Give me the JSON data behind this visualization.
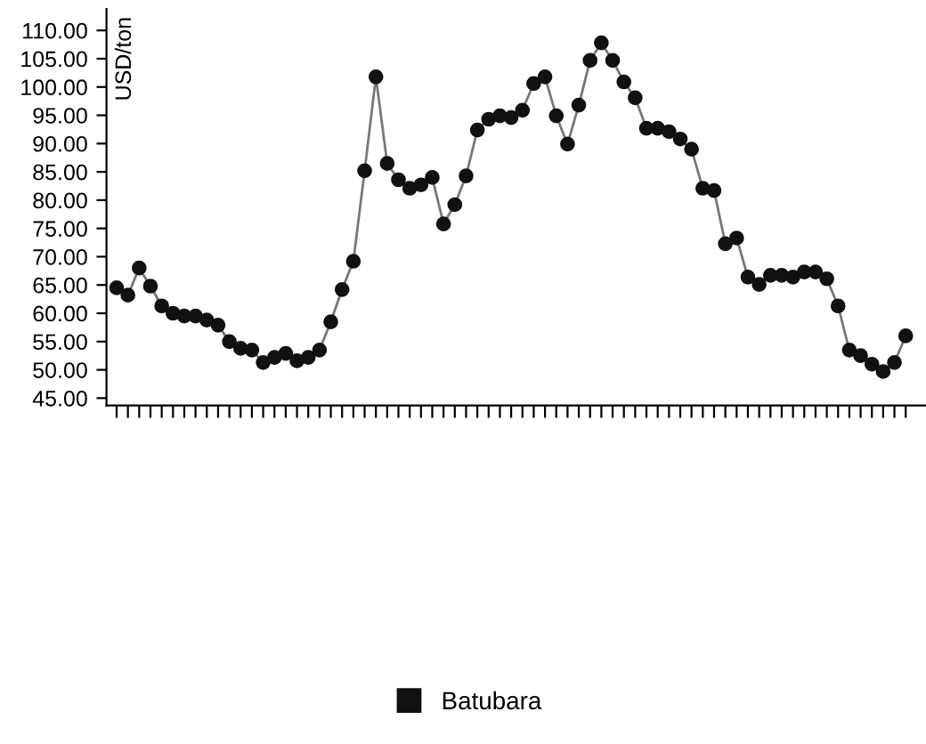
{
  "chart_data": {
    "type": "line",
    "ylabel": "USD/ton",
    "categories": [
      null,
      null,
      null,
      null,
      null,
      null,
      null,
      null,
      null,
      null,
      null,
      null,
      null,
      null,
      null,
      null,
      null,
      null,
      null,
      null,
      null,
      null,
      null,
      null,
      null,
      null,
      null,
      null,
      null,
      null,
      null,
      null,
      null,
      null,
      null,
      null,
      null,
      null,
      null,
      null,
      null,
      null,
      null,
      null,
      null,
      null,
      null,
      null,
      null,
      null,
      null,
      null,
      null,
      null,
      null,
      null,
      null,
      null,
      null,
      null,
      null,
      null,
      null,
      null,
      null,
      null,
      null,
      null,
      null,
      null,
      null
    ],
    "series": [
      {
        "name": "Batubara",
        "color": "#111111",
        "values": [
          64.5,
          63.2,
          68,
          64.8,
          61.3,
          60,
          59.5,
          59.5,
          58.8,
          57.9,
          55,
          53.8,
          53.5,
          51.3,
          52.2,
          52.9,
          51.6,
          52.2,
          53.5,
          58.5,
          64.2,
          69.2,
          85.2,
          101.8,
          86.5,
          83.6,
          82.1,
          82.7,
          84,
          75.8,
          79.2,
          84.3,
          92.4,
          94.3,
          94.9,
          94.6,
          95.9,
          100.6,
          101.8,
          94.9,
          89.9,
          96.8,
          104.7,
          107.8,
          104.7,
          100.9,
          98.1,
          92.7,
          92.7,
          92.1,
          90.8,
          89,
          82.1,
          81.7,
          72.3,
          73.3,
          66.4,
          65.1,
          66.7,
          66.7,
          66.4,
          67.3,
          67.3,
          66.1,
          61.3,
          53.5,
          52.5,
          51,
          49.7,
          51.3,
          56
        ]
      }
    ],
    "ylim": [
      43.7,
      113.8
    ],
    "yticks": [
      {
        "value": 45,
        "label": "45.00"
      },
      {
        "value": 50,
        "label": "50.00"
      },
      {
        "value": 55,
        "label": "55.00"
      },
      {
        "value": 60,
        "label": "60.00"
      },
      {
        "value": 65,
        "label": "65.00"
      },
      {
        "value": 70,
        "label": "70.00"
      },
      {
        "value": 75,
        "label": "75.00"
      },
      {
        "value": 80,
        "label": "80.00"
      },
      {
        "value": 85,
        "label": "85.00"
      },
      {
        "value": 90,
        "label": "90.00"
      },
      {
        "value": 95,
        "label": "95.00"
      },
      {
        "value": 100,
        "label": "100.00"
      },
      {
        "value": 105,
        "label": "105.00"
      },
      {
        "value": 110,
        "label": "110.00"
      }
    ],
    "tick_labels": "y",
    "marker": "circle",
    "line_style": "solid",
    "legend": "bottom",
    "grid": false
  }
}
